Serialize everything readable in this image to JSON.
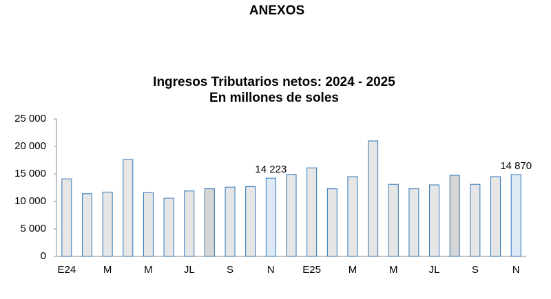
{
  "header": {
    "title": "ANEXOS"
  },
  "chart_data": {
    "type": "bar",
    "title": "Ingresos Tributarios netos: 2024 - 2025",
    "subtitle": "En millones de soles",
    "categories": [
      "E24",
      null,
      "M",
      null,
      "M",
      null,
      "JL",
      null,
      "S",
      null,
      "N",
      null,
      "E25",
      null,
      "M",
      null,
      "M",
      null,
      "JL",
      null,
      "S",
      null,
      "N"
    ],
    "values": [
      14100,
      11400,
      11700,
      17600,
      11600,
      10600,
      11900,
      12300,
      12600,
      12700,
      14223,
      14900,
      16100,
      12300,
      14500,
      21000,
      13100,
      12300,
      13000,
      14750,
      13100,
      14500,
      14870
    ],
    "value_labels": [
      null,
      null,
      null,
      null,
      null,
      null,
      null,
      null,
      null,
      null,
      "14 223",
      null,
      null,
      null,
      null,
      null,
      null,
      null,
      null,
      null,
      null,
      null,
      "14 870"
    ],
    "colors": [
      "#e6e6e6",
      "#e6e6e6",
      "#e6e6e6",
      "#e6e6e6",
      "#e6e6e6",
      "#e6e6e6",
      "#e6e6e6",
      "#d6d6d6",
      "#e6e6e6",
      "#e6e6e6",
      "#dde9f5",
      "#e6e6e6",
      "#e6e6e6",
      "#e6e6e6",
      "#e6e6e6",
      "#e6e6e6",
      "#e6e6e6",
      "#e6e6e6",
      "#e6e6e6",
      "#d6d6d6",
      "#e6e6e6",
      "#e6e6e6",
      "#dde9f5"
    ],
    "edge_color": "#2e75b6",
    "ylim": [
      0,
      25000
    ],
    "yticks": [
      0,
      {
        "value": 5000,
        "label": "5 000"
      },
      {
        "value": 10000,
        "label": "10 000"
      },
      {
        "value": 15000,
        "label": "15 000"
      },
      {
        "value": 20000,
        "label": "20 000"
      },
      {
        "value": 25000,
        "label": "25 000"
      }
    ],
    "grid": false
  }
}
